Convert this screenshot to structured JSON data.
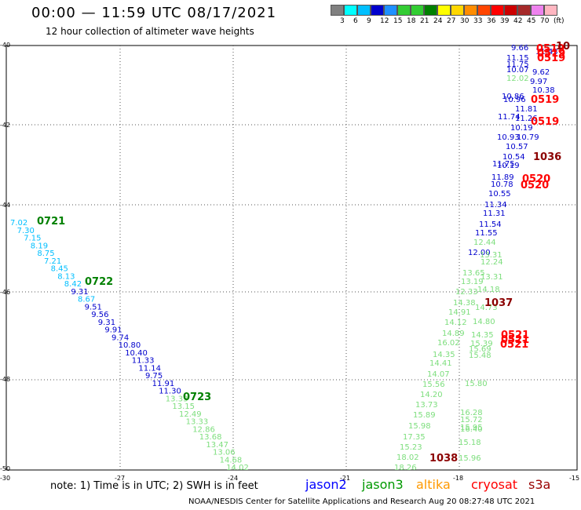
{
  "header": {
    "title": "00:00 — 11:59 UTC 08/17/2021",
    "subtitle": "12 hour collection of altimeter wave heights"
  },
  "legend": {
    "colors": [
      "#808080",
      "#00ffff",
      "#00bfff",
      "#0000cd",
      "#1e90ff",
      "#33cc33",
      "#32cd32",
      "#008000",
      "#ffff00",
      "#ffd700",
      "#ff8c00",
      "#ff4500",
      "#ff0000",
      "#cc0000",
      "#a52a2a",
      "#ee82ee",
      "#ffb6c1"
    ],
    "labels": [
      "3",
      "6",
      "9",
      "12",
      "15",
      "18",
      "21",
      "24",
      "27",
      "30",
      "33",
      "36",
      "39",
      "42",
      "45",
      "70",
      "(ft)"
    ]
  },
  "axes": {
    "y_ticks": [
      "-40",
      "-42",
      "-44",
      "-46",
      "-48",
      "-50"
    ],
    "x_ticks": [
      "-30",
      "-27",
      "-24",
      "-21",
      "-18",
      "-15"
    ]
  },
  "tracks": {
    "left_values": [
      {
        "v": "7.02",
        "c": "#00bfff"
      },
      {
        "v": "7.30",
        "c": "#00bfff"
      },
      {
        "v": "7.15",
        "c": "#00bfff"
      },
      {
        "v": "8.19",
        "c": "#00bfff"
      },
      {
        "v": "8.75",
        "c": "#00bfff"
      },
      {
        "v": "7.21",
        "c": "#00bfff"
      },
      {
        "v": "8.45",
        "c": "#00bfff"
      },
      {
        "v": "8.13",
        "c": "#00bfff"
      },
      {
        "v": "8.42",
        "c": "#00bfff"
      },
      {
        "v": "9.31",
        "c": "#0000cd"
      },
      {
        "v": "8.67",
        "c": "#00bfff"
      },
      {
        "v": "9.51",
        "c": "#0000cd"
      },
      {
        "v": "9.56",
        "c": "#0000cd"
      },
      {
        "v": "9.31",
        "c": "#0000cd"
      },
      {
        "v": "9.91",
        "c": "#0000cd"
      },
      {
        "v": "9.74",
        "c": "#0000cd"
      },
      {
        "v": "10.80",
        "c": "#0000cd"
      },
      {
        "v": "10.40",
        "c": "#0000cd"
      },
      {
        "v": "11.33",
        "c": "#0000cd"
      },
      {
        "v": "11.14",
        "c": "#0000cd"
      },
      {
        "v": "9.75",
        "c": "#0000cd"
      },
      {
        "v": "11.91",
        "c": "#0000cd"
      },
      {
        "v": "11.30",
        "c": "#0000cd"
      },
      {
        "v": "13.33",
        "c": "#7dde7d"
      },
      {
        "v": "13.15",
        "c": "#7dde7d"
      },
      {
        "v": "12.49",
        "c": "#7dde7d"
      },
      {
        "v": "13.33",
        "c": "#7dde7d"
      },
      {
        "v": "12.86",
        "c": "#7dde7d"
      },
      {
        "v": "13.68",
        "c": "#7dde7d"
      },
      {
        "v": "13.47",
        "c": "#7dde7d"
      },
      {
        "v": "13.06",
        "c": "#7dde7d"
      },
      {
        "v": "14.68",
        "c": "#7dde7d"
      },
      {
        "v": "14.02",
        "c": "#7dde7d"
      }
    ],
    "left_time_labels": [
      "0721",
      "0722",
      "0723"
    ],
    "right_values": [
      {
        "v": "9.66",
        "c": "#0000cd"
      },
      {
        "v": "11.43",
        "c": "#0000cd"
      },
      {
        "v": "11.15",
        "c": "#0000cd"
      },
      {
        "v": "11.75",
        "c": "#0000cd"
      },
      {
        "v": "10.07",
        "c": "#0000cd"
      },
      {
        "v": "9.62",
        "c": "#0000cd"
      },
      {
        "v": "12.02",
        "c": "#7dde7d"
      },
      {
        "v": "9.97",
        "c": "#0000cd"
      },
      {
        "v": "10.38",
        "c": "#0000cd"
      },
      {
        "v": "10.86",
        "c": "#0000cd"
      },
      {
        "v": "10.96",
        "c": "#0000cd"
      },
      {
        "v": "11.81",
        "c": "#0000cd"
      },
      {
        "v": "11.74",
        "c": "#0000cd"
      },
      {
        "v": "11.26",
        "c": "#0000cd"
      },
      {
        "v": "10.19",
        "c": "#0000cd"
      },
      {
        "v": "10.79",
        "c": "#0000cd"
      },
      {
        "v": "10.93",
        "c": "#0000cd"
      },
      {
        "v": "10.57",
        "c": "#0000cd"
      },
      {
        "v": "10.54",
        "c": "#0000cd"
      },
      {
        "v": "11.75",
        "c": "#0000cd"
      },
      {
        "v": "10.19",
        "c": "#0000cd"
      },
      {
        "v": "11.89",
        "c": "#0000cd"
      },
      {
        "v": "10.78",
        "c": "#0000cd"
      },
      {
        "v": "10.55",
        "c": "#0000cd"
      },
      {
        "v": "11.34",
        "c": "#0000cd"
      },
      {
        "v": "11.31",
        "c": "#0000cd"
      },
      {
        "v": "11.54",
        "c": "#0000cd"
      },
      {
        "v": "11.55",
        "c": "#0000cd"
      },
      {
        "v": "12.44",
        "c": "#7dde7d"
      },
      {
        "v": "12.00",
        "c": "#0000cd"
      },
      {
        "v": "13.31",
        "c": "#7dde7d"
      },
      {
        "v": "12.24",
        "c": "#7dde7d"
      },
      {
        "v": "13.65",
        "c": "#7dde7d"
      },
      {
        "v": "13.19",
        "c": "#7dde7d"
      },
      {
        "v": "13.31",
        "c": "#7dde7d"
      },
      {
        "v": "14.18",
        "c": "#7dde7d"
      },
      {
        "v": "12.33",
        "c": "#7dde7d"
      },
      {
        "v": "14.38",
        "c": "#7dde7d"
      },
      {
        "v": "14.73",
        "c": "#7dde7d"
      },
      {
        "v": "14.91",
        "c": "#7dde7d"
      },
      {
        "v": "14.12",
        "c": "#7dde7d"
      },
      {
        "v": "14.80",
        "c": "#7dde7d"
      },
      {
        "v": "14.89",
        "c": "#7dde7d"
      },
      {
        "v": "14.35",
        "c": "#7dde7d"
      },
      {
        "v": "16.02",
        "c": "#7dde7d"
      },
      {
        "v": "15.39",
        "c": "#7dde7d"
      },
      {
        "v": "15.69",
        "c": "#7dde7d"
      },
      {
        "v": "14.35",
        "c": "#7dde7d"
      },
      {
        "v": "15.48",
        "c": "#7dde7d"
      },
      {
        "v": "14.41",
        "c": "#7dde7d"
      },
      {
        "v": "14.07",
        "c": "#7dde7d"
      },
      {
        "v": "15.56",
        "c": "#7dde7d"
      },
      {
        "v": "15.80",
        "c": "#7dde7d"
      },
      {
        "v": "14.20",
        "c": "#7dde7d"
      },
      {
        "v": "13.73",
        "c": "#7dde7d"
      },
      {
        "v": "15.89",
        "c": "#7dde7d"
      },
      {
        "v": "16.28",
        "c": "#7dde7d"
      },
      {
        "v": "15.72",
        "c": "#7dde7d"
      },
      {
        "v": "15.98",
        "c": "#7dde7d"
      },
      {
        "v": "15.95",
        "c": "#7dde7d"
      },
      {
        "v": "16.40",
        "c": "#7dde7d"
      },
      {
        "v": "17.35",
        "c": "#7dde7d"
      },
      {
        "v": "15.18",
        "c": "#7dde7d"
      },
      {
        "v": "15.23",
        "c": "#7dde7d"
      },
      {
        "v": "18.02",
        "c": "#7dde7d"
      },
      {
        "v": "15.96",
        "c": "#7dde7d"
      },
      {
        "v": "18.26",
        "c": "#7dde7d"
      }
    ],
    "right_time_labels": [
      {
        "t": "0519",
        "c": "#ff0000"
      },
      {
        "t": "10",
        "c": "#8b0000"
      },
      {
        "t": "0519",
        "c": "#ff0000"
      },
      {
        "t": "0519",
        "c": "#ff0000"
      },
      {
        "t": "0519",
        "c": "#ff0000"
      },
      {
        "t": "0519",
        "c": "#ff0000"
      },
      {
        "t": "1036",
        "c": "#8b0000"
      },
      {
        "t": "0520",
        "c": "#ff0000"
      },
      {
        "t": "0520",
        "c": "#ff0000"
      },
      {
        "t": "1037",
        "c": "#8b0000"
      },
      {
        "t": "0521",
        "c": "#ff0000"
      },
      {
        "t": "0521",
        "c": "#ff0000"
      },
      {
        "t": "0521",
        "c": "#ff0000"
      },
      {
        "t": "1038",
        "c": "#8b0000"
      }
    ]
  },
  "footer": {
    "note": "note: 1) Time is in UTC; 2) SWH is in feet",
    "satellites": [
      {
        "name": "jason2",
        "color": "#0000ff"
      },
      {
        "name": "jason3",
        "color": "#009900"
      },
      {
        "name": "altika",
        "color": "#ff9900"
      },
      {
        "name": "cryosat",
        "color": "#ff0000"
      },
      {
        "name": "s3a",
        "color": "#990000"
      }
    ],
    "credit": "NOAA/NESDIS Center for Satellite Applications and Research    Aug 20 08:27:48 UTC 2021"
  }
}
